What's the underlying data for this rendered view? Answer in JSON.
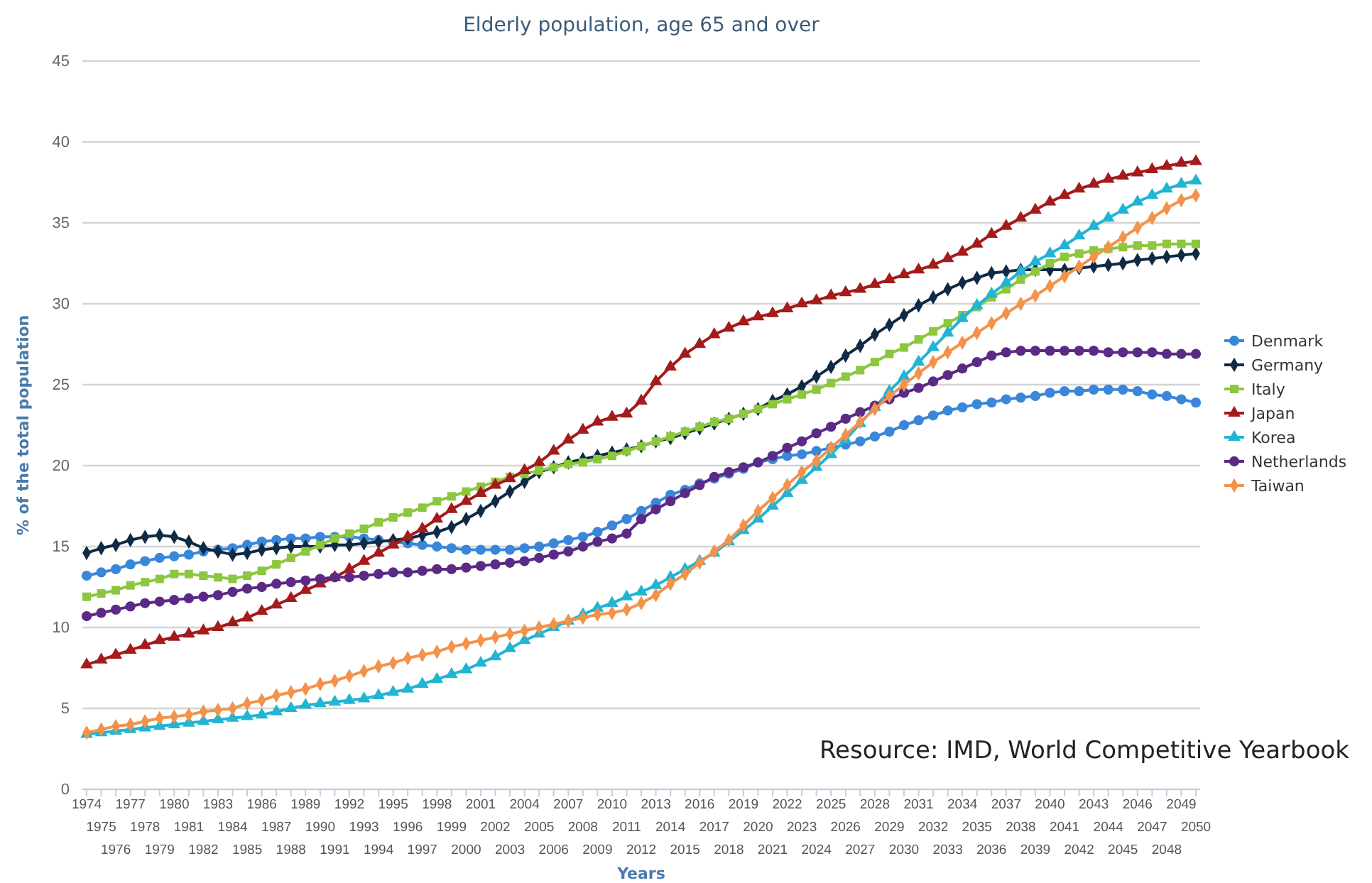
{
  "chart_data": {
    "type": "line",
    "title": "Elderly population, age 65 and over",
    "xlabel": "Years",
    "ylabel": "% of the total population",
    "categories": [
      "1974",
      "1975",
      "1976",
      "1977",
      "1978",
      "1979",
      "1980",
      "1981",
      "1982",
      "1983",
      "1984",
      "1985",
      "1986",
      "1987",
      "1988",
      "1989",
      "1990",
      "1991",
      "1992",
      "1993",
      "1994",
      "1995",
      "1996",
      "1997",
      "1998",
      "1999",
      "2000",
      "2001",
      "2002",
      "2003",
      "2004",
      "2005",
      "2006",
      "2007",
      "2008",
      "2009",
      "2010",
      "2011",
      "2012",
      "2013",
      "2014",
      "2015",
      "2016",
      "2017",
      "2018",
      "2019",
      "2020",
      "2021",
      "2022",
      "2023",
      "2024",
      "2025",
      "2026",
      "2027",
      "2028",
      "2029",
      "2030",
      "2031",
      "2032",
      "2033",
      "2034",
      "2035",
      "2036",
      "2037",
      "2038",
      "2039",
      "2040",
      "2041",
      "2042",
      "2043",
      "2044",
      "2045",
      "2046",
      "2047",
      "2048",
      "2049",
      "2050"
    ],
    "ylim": [
      0,
      45
    ],
    "yticks": [
      0,
      5,
      10,
      15,
      20,
      25,
      30,
      35,
      40,
      45
    ],
    "grid": "y",
    "legend": "right",
    "annotations": [
      "Resource: IMD, World Competitive Yearbook"
    ],
    "series": [
      {
        "name": "Denmark",
        "color": "#3a87d9",
        "marker": "circle",
        "values": [
          13.2,
          13.4,
          13.6,
          13.9,
          14.1,
          14.3,
          14.4,
          14.5,
          14.7,
          14.8,
          14.9,
          15.1,
          15.3,
          15.4,
          15.5,
          15.5,
          15.6,
          15.6,
          15.6,
          15.5,
          15.4,
          15.3,
          15.2,
          15.1,
          15.0,
          14.9,
          14.8,
          14.8,
          14.8,
          14.8,
          14.9,
          15.0,
          15.2,
          15.4,
          15.6,
          15.9,
          16.3,
          16.7,
          17.2,
          17.7,
          18.2,
          18.5,
          18.9,
          19.2,
          19.5,
          19.8,
          20.2,
          20.4,
          20.6,
          20.7,
          20.9,
          21.1,
          21.3,
          21.5,
          21.8,
          22.1,
          22.5,
          22.8,
          23.1,
          23.4,
          23.6,
          23.8,
          23.9,
          24.1,
          24.2,
          24.3,
          24.5,
          24.6,
          24.6,
          24.7,
          24.7,
          24.7,
          24.6,
          24.4,
          24.3,
          24.1,
          23.9
        ]
      },
      {
        "name": "Germany",
        "color": "#0f2a44",
        "marker": "diamond",
        "values": [
          14.6,
          14.9,
          15.1,
          15.4,
          15.6,
          15.7,
          15.6,
          15.3,
          14.9,
          14.7,
          14.5,
          14.6,
          14.8,
          14.9,
          15.0,
          15.0,
          15.0,
          15.1,
          15.1,
          15.2,
          15.3,
          15.4,
          15.5,
          15.7,
          15.9,
          16.2,
          16.7,
          17.2,
          17.8,
          18.4,
          19.0,
          19.6,
          19.9,
          20.2,
          20.4,
          20.6,
          20.8,
          21.0,
          21.2,
          21.5,
          21.7,
          22.0,
          22.3,
          22.6,
          22.9,
          23.2,
          23.5,
          24.0,
          24.4,
          24.9,
          25.5,
          26.1,
          26.8,
          27.4,
          28.1,
          28.7,
          29.3,
          29.9,
          30.4,
          30.9,
          31.3,
          31.6,
          31.9,
          32.0,
          32.1,
          32.1,
          32.1,
          32.1,
          32.2,
          32.3,
          32.4,
          32.5,
          32.7,
          32.8,
          32.9,
          33.0,
          33.1
        ]
      },
      {
        "name": "Italy",
        "color": "#8dc63f",
        "marker": "square",
        "values": [
          11.9,
          12.1,
          12.3,
          12.6,
          12.8,
          13.0,
          13.3,
          13.3,
          13.2,
          13.1,
          13.0,
          13.2,
          13.5,
          13.9,
          14.3,
          14.7,
          15.1,
          15.5,
          15.8,
          16.1,
          16.5,
          16.8,
          17.1,
          17.4,
          17.8,
          18.1,
          18.4,
          18.7,
          19.0,
          19.3,
          19.5,
          19.7,
          19.9,
          20.1,
          20.2,
          20.4,
          20.6,
          20.9,
          21.2,
          21.5,
          21.8,
          22.1,
          22.4,
          22.7,
          22.9,
          23.2,
          23.5,
          23.8,
          24.1,
          24.4,
          24.7,
          25.1,
          25.5,
          25.9,
          26.4,
          26.9,
          27.3,
          27.8,
          28.3,
          28.8,
          29.3,
          29.8,
          30.4,
          30.9,
          31.5,
          32.0,
          32.5,
          32.9,
          33.1,
          33.3,
          33.4,
          33.5,
          33.6,
          33.6,
          33.7,
          33.7,
          33.7
        ]
      },
      {
        "name": "Japan",
        "color": "#a31b1b",
        "marker": "triangle",
        "values": [
          7.7,
          8.0,
          8.3,
          8.6,
          8.9,
          9.2,
          9.4,
          9.6,
          9.8,
          10.0,
          10.3,
          10.6,
          11.0,
          11.4,
          11.8,
          12.3,
          12.7,
          13.1,
          13.6,
          14.1,
          14.6,
          15.1,
          15.6,
          16.1,
          16.7,
          17.3,
          17.8,
          18.3,
          18.8,
          19.2,
          19.7,
          20.2,
          20.9,
          21.6,
          22.2,
          22.7,
          23.0,
          23.2,
          24.0,
          25.2,
          26.1,
          26.9,
          27.5,
          28.1,
          28.5,
          28.9,
          29.2,
          29.4,
          29.7,
          30.0,
          30.2,
          30.5,
          30.7,
          30.9,
          31.2,
          31.5,
          31.8,
          32.1,
          32.4,
          32.8,
          33.2,
          33.7,
          34.3,
          34.8,
          35.3,
          35.8,
          36.3,
          36.7,
          37.1,
          37.4,
          37.7,
          37.9,
          38.1,
          38.3,
          38.5,
          38.7,
          38.8
        ]
      },
      {
        "name": "Korea",
        "color": "#22b4d3",
        "marker": "triangle",
        "values": [
          3.4,
          3.5,
          3.6,
          3.7,
          3.8,
          3.9,
          4.0,
          4.1,
          4.2,
          4.3,
          4.4,
          4.5,
          4.6,
          4.8,
          5.0,
          5.2,
          5.3,
          5.4,
          5.5,
          5.6,
          5.8,
          6.0,
          6.2,
          6.5,
          6.8,
          7.1,
          7.4,
          7.8,
          8.2,
          8.7,
          9.2,
          9.6,
          10.0,
          10.4,
          10.8,
          11.2,
          11.5,
          11.9,
          12.2,
          12.6,
          13.1,
          13.6,
          14.1,
          14.6,
          15.3,
          16.0,
          16.7,
          17.5,
          18.3,
          19.1,
          19.9,
          20.7,
          21.6,
          22.6,
          23.6,
          24.6,
          25.5,
          26.4,
          27.3,
          28.2,
          29.1,
          29.9,
          30.6,
          31.3,
          32.0,
          32.6,
          33.1,
          33.6,
          34.2,
          34.8,
          35.3,
          35.8,
          36.3,
          36.7,
          37.1,
          37.4,
          37.6
        ]
      },
      {
        "name": "Netherlands",
        "color": "#5b2a86",
        "marker": "circle",
        "values": [
          10.7,
          10.9,
          11.1,
          11.3,
          11.5,
          11.6,
          11.7,
          11.8,
          11.9,
          12.0,
          12.2,
          12.4,
          12.5,
          12.7,
          12.8,
          12.9,
          13.0,
          13.1,
          13.1,
          13.2,
          13.3,
          13.4,
          13.4,
          13.5,
          13.6,
          13.6,
          13.7,
          13.8,
          13.9,
          14.0,
          14.1,
          14.3,
          14.5,
          14.7,
          15.0,
          15.3,
          15.5,
          15.8,
          16.7,
          17.3,
          17.8,
          18.3,
          18.8,
          19.3,
          19.6,
          19.9,
          20.2,
          20.6,
          21.1,
          21.5,
          22.0,
          22.4,
          22.9,
          23.3,
          23.7,
          24.1,
          24.5,
          24.8,
          25.2,
          25.6,
          26.0,
          26.4,
          26.8,
          27.0,
          27.1,
          27.1,
          27.1,
          27.1,
          27.1,
          27.1,
          27.0,
          27.0,
          27.0,
          27.0,
          26.9,
          26.9,
          26.9
        ]
      },
      {
        "name": "Taiwan",
        "color": "#f3924a",
        "marker": "diamond",
        "values": [
          3.5,
          3.7,
          3.9,
          4.0,
          4.2,
          4.4,
          4.5,
          4.6,
          4.8,
          4.9,
          5.0,
          5.3,
          5.5,
          5.8,
          6.0,
          6.2,
          6.5,
          6.7,
          7.0,
          7.3,
          7.6,
          7.8,
          8.1,
          8.3,
          8.5,
          8.8,
          9.0,
          9.2,
          9.4,
          9.6,
          9.8,
          10.0,
          10.2,
          10.4,
          10.6,
          10.8,
          10.9,
          11.1,
          11.5,
          12.0,
          12.7,
          13.3,
          14.0,
          14.7,
          15.4,
          16.3,
          17.2,
          18.0,
          18.8,
          19.6,
          20.3,
          21.1,
          21.9,
          22.7,
          23.5,
          24.3,
          25.0,
          25.7,
          26.4,
          27.0,
          27.6,
          28.2,
          28.8,
          29.4,
          30.0,
          30.5,
          31.1,
          31.7,
          32.3,
          32.9,
          33.5,
          34.1,
          34.7,
          35.3,
          35.9,
          36.4,
          36.7
        ]
      }
    ]
  }
}
